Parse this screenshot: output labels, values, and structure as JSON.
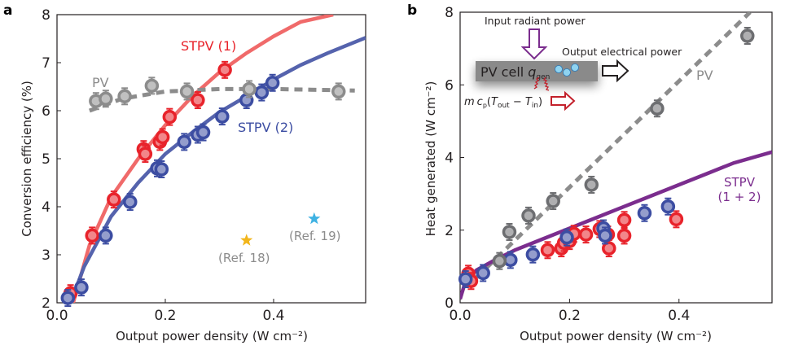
{
  "chart_data": [
    {
      "panel": "a",
      "type": "scatter",
      "xlabel": "Output power density (W cm⁻²)",
      "ylabel": "Conversion efficiency (%)",
      "xlim": [
        0,
        0.57
      ],
      "ylim": [
        2,
        8
      ],
      "xticks": [
        "0.0",
        "0.2",
        "0.4"
      ],
      "xtick_values": [
        0,
        0.2,
        0.4
      ],
      "yticks": [
        "2",
        "3",
        "4",
        "5",
        "6",
        "7",
        "8"
      ],
      "ytick_values": [
        2,
        3,
        4,
        5,
        6,
        7,
        8
      ],
      "grid": false,
      "series": [
        {
          "name": "STPV (1)",
          "color": "#e8232b",
          "fit_color": "#f06a6a",
          "points": [
            [
              0.025,
              2.2
            ],
            [
              0.065,
              3.4
            ],
            [
              0.105,
              4.15
            ],
            [
              0.16,
              5.2
            ],
            [
              0.163,
              5.1
            ],
            [
              0.19,
              5.35
            ],
            [
              0.195,
              5.45
            ],
            [
              0.208,
              5.87
            ],
            [
              0.26,
              6.22
            ],
            [
              0.31,
              6.85
            ]
          ],
          "fit": [
            [
              0.03,
              2.0
            ],
            [
              0.06,
              3.2
            ],
            [
              0.1,
              4.2
            ],
            [
              0.15,
              5.0
            ],
            [
              0.2,
              5.7
            ],
            [
              0.25,
              6.3
            ],
            [
              0.3,
              6.8
            ],
            [
              0.35,
              7.2
            ],
            [
              0.4,
              7.55
            ],
            [
              0.45,
              7.85
            ],
            [
              0.51,
              8.0
            ]
          ]
        },
        {
          "name": "STPV (2)",
          "color": "#3c4da2",
          "fit_color": "#5563ad",
          "points": [
            [
              0.02,
              2.1
            ],
            [
              0.045,
              2.32
            ],
            [
              0.09,
              3.4
            ],
            [
              0.135,
              4.1
            ],
            [
              0.185,
              4.8
            ],
            [
              0.193,
              4.78
            ],
            [
              0.235,
              5.35
            ],
            [
              0.26,
              5.5
            ],
            [
              0.27,
              5.55
            ],
            [
              0.305,
              5.88
            ],
            [
              0.35,
              6.22
            ],
            [
              0.378,
              6.38
            ],
            [
              0.398,
              6.58
            ]
          ],
          "fit": [
            [
              0.025,
              2.0
            ],
            [
              0.05,
              2.75
            ],
            [
              0.1,
              3.8
            ],
            [
              0.15,
              4.5
            ],
            [
              0.2,
              5.1
            ],
            [
              0.25,
              5.55
            ],
            [
              0.3,
              5.97
            ],
            [
              0.35,
              6.3
            ],
            [
              0.4,
              6.65
            ],
            [
              0.45,
              6.95
            ],
            [
              0.5,
              7.2
            ],
            [
              0.57,
              7.52
            ]
          ]
        },
        {
          "name": "PV",
          "color": "#8c8c8c",
          "dashed": true,
          "points": [
            [
              0.072,
              6.2
            ],
            [
              0.09,
              6.25
            ],
            [
              0.125,
              6.3
            ],
            [
              0.175,
              6.52
            ],
            [
              0.24,
              6.4
            ],
            [
              0.355,
              6.45
            ],
            [
              0.52,
              6.4
            ]
          ],
          "fit": [
            [
              0.06,
              6.0
            ],
            [
              0.12,
              6.25
            ],
            [
              0.2,
              6.4
            ],
            [
              0.3,
              6.45
            ],
            [
              0.4,
              6.45
            ],
            [
              0.55,
              6.42
            ]
          ]
        }
      ],
      "references": [
        {
          "label": "(Ref. 18)",
          "x": 0.35,
          "y": 3.3,
          "color": "#f2b61c"
        },
        {
          "label": "(Ref. 19)",
          "x": 0.475,
          "y": 3.75,
          "color": "#3fb2e3"
        }
      ],
      "labels": {
        "stpv1": "STPV (1)",
        "stpv2": "STPV (2)",
        "pv": "PV"
      }
    },
    {
      "panel": "b",
      "type": "scatter",
      "xlabel": "Output power density (W cm⁻²)",
      "ylabel": "Heat generated (W cm⁻²)",
      "xlim": [
        0,
        0.57
      ],
      "ylim": [
        0,
        8
      ],
      "xticks": [
        "0.0",
        "0.2",
        "0.4"
      ],
      "xtick_values": [
        0,
        0.2,
        0.4
      ],
      "yticks": [
        "0",
        "2",
        "4",
        "6",
        "8"
      ],
      "ytick_values": [
        0,
        2,
        4,
        6,
        8
      ],
      "grid": false,
      "series": [
        {
          "name": "STPV (1)",
          "color": "#e8232b",
          "points": [
            [
              0.015,
              0.8
            ],
            [
              0.02,
              0.6
            ],
            [
              0.16,
              1.45
            ],
            [
              0.185,
              1.5
            ],
            [
              0.19,
              1.65
            ],
            [
              0.2,
              1.7
            ],
            [
              0.208,
              1.9
            ],
            [
              0.23,
              1.88
            ],
            [
              0.255,
              2.03
            ],
            [
              0.27,
              1.88
            ],
            [
              0.272,
              1.5
            ],
            [
              0.3,
              2.28
            ],
            [
              0.3,
              1.85
            ],
            [
              0.395,
              2.3
            ]
          ]
        },
        {
          "name": "STPV (2)",
          "color": "#3c4da2",
          "points": [
            [
              0.01,
              0.65
            ],
            [
              0.042,
              0.82
            ],
            [
              0.092,
              1.18
            ],
            [
              0.133,
              1.33
            ],
            [
              0.195,
              1.8
            ],
            [
              0.262,
              2.05
            ],
            [
              0.265,
              1.85
            ],
            [
              0.337,
              2.47
            ],
            [
              0.38,
              2.65
            ]
          ]
        },
        {
          "name": "PV",
          "color": "#6d6e71",
          "dashed": true,
          "points": [
            [
              0.072,
              1.15
            ],
            [
              0.09,
              1.95
            ],
            [
              0.125,
              2.4
            ],
            [
              0.17,
              2.8
            ],
            [
              0.24,
              3.25
            ],
            [
              0.36,
              5.35
            ],
            [
              0.525,
              7.35
            ]
          ],
          "fit": [
            [
              0.03,
              0.7
            ],
            [
              0.53,
              8.0
            ]
          ]
        },
        {
          "name": "STPV (1 + 2)",
          "color": "#7b2d8e",
          "fit": [
            [
              0.0,
              0.1
            ],
            [
              0.01,
              0.6
            ],
            [
              0.03,
              0.9
            ],
            [
              0.06,
              1.15
            ],
            [
              0.1,
              1.45
            ],
            [
              0.15,
              1.75
            ],
            [
              0.2,
              2.05
            ],
            [
              0.25,
              2.35
            ],
            [
              0.3,
              2.65
            ],
            [
              0.35,
              2.95
            ],
            [
              0.4,
              3.25
            ],
            [
              0.45,
              3.55
            ],
            [
              0.5,
              3.85
            ],
            [
              0.57,
              4.15
            ]
          ]
        }
      ],
      "labels": {
        "pv": "PV",
        "stpv12_line1": "STPV",
        "stpv12_line2": "(1 + 2)"
      },
      "inset": {
        "input_label": "Input radiant power",
        "output_label": "Output electrical power",
        "cell_label": "PV cell",
        "q_symbol": "q",
        "q_sub": "gen",
        "electron": "e",
        "heat_m": "m",
        "heat_c": "c",
        "heat_c_sub": "p",
        "heat_open": "(",
        "heat_T1": "T",
        "heat_T1_sub": "out",
        "heat_minus": " − ",
        "heat_T2": "T",
        "heat_T2_sub": "in",
        "heat_close": ")"
      }
    }
  ],
  "panel_labels": [
    "a",
    "b"
  ]
}
